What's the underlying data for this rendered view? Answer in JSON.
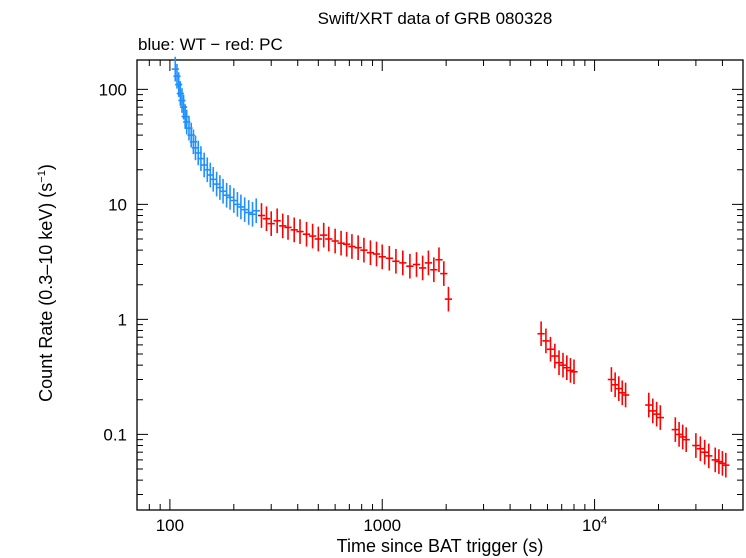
{
  "chart_data": {
    "type": "scatter",
    "title": "Swift/XRT data of GRB 080328",
    "subtitle": "blue: WT − red: PC",
    "xlabel": "Time since BAT trigger (s)",
    "ylabel": "Count Rate (0.3–10 keV) (s",
    "ylabel_sup": "−1",
    "ylabel_tail": ")",
    "xscale": "log",
    "yscale": "log",
    "xlim": [
      70,
      50000
    ],
    "ylim": [
      0.022,
      180
    ],
    "x_ticks": [
      {
        "value": 100,
        "label": "100"
      },
      {
        "value": 1000,
        "label": "1000"
      },
      {
        "value": 10000,
        "label": "10",
        "sup": "4"
      }
    ],
    "y_ticks": [
      {
        "value": 100,
        "label": "100"
      },
      {
        "value": 10,
        "label": "10"
      },
      {
        "value": 1,
        "label": "1"
      },
      {
        "value": 0.1,
        "label": "0.1"
      }
    ],
    "series": [
      {
        "name": "WT",
        "color": "#1E90FF",
        "points": [
          [
            106,
            150
          ],
          [
            108,
            130
          ],
          [
            110,
            110
          ],
          [
            112,
            92
          ],
          [
            114,
            80
          ],
          [
            116,
            70
          ],
          [
            118,
            58
          ],
          [
            120,
            52
          ],
          [
            123,
            46
          ],
          [
            126,
            40
          ],
          [
            129,
            35
          ],
          [
            132,
            31
          ],
          [
            136,
            28
          ],
          [
            140,
            25
          ],
          [
            145,
            22
          ],
          [
            150,
            20
          ],
          [
            155,
            18
          ],
          [
            160,
            16.5
          ],
          [
            166,
            15
          ],
          [
            172,
            14
          ],
          [
            178,
            13
          ],
          [
            185,
            12
          ],
          [
            192,
            11.5
          ],
          [
            200,
            10.8
          ],
          [
            208,
            10
          ],
          [
            216,
            9.5
          ],
          [
            225,
            9
          ],
          [
            235,
            8.5
          ],
          [
            245,
            8.2
          ],
          [
            255,
            8.8
          ]
        ]
      },
      {
        "name": "PC",
        "color": "#FF0000",
        "points": [
          [
            270,
            8
          ],
          [
            285,
            7.5
          ],
          [
            300,
            6.8
          ],
          [
            320,
            7.2
          ],
          [
            340,
            6.5
          ],
          [
            360,
            6.3
          ],
          [
            385,
            6
          ],
          [
            410,
            5.8
          ],
          [
            440,
            5.5
          ],
          [
            470,
            5.3
          ],
          [
            500,
            5
          ],
          [
            530,
            5.4
          ],
          [
            560,
            5
          ],
          [
            600,
            4.8
          ],
          [
            640,
            4.6
          ],
          [
            680,
            4.5
          ],
          [
            720,
            4.3
          ],
          [
            770,
            4.2
          ],
          [
            820,
            4
          ],
          [
            880,
            3.8
          ],
          [
            940,
            3.7
          ],
          [
            1000,
            3.5
          ],
          [
            1080,
            3.4
          ],
          [
            1160,
            3.2
          ],
          [
            1250,
            3.1
          ],
          [
            1350,
            2.9
          ],
          [
            1450,
            3
          ],
          [
            1550,
            2.8
          ],
          [
            1650,
            3.1
          ],
          [
            1750,
            2.7
          ],
          [
            1850,
            3.3
          ],
          [
            1950,
            2.5
          ],
          [
            2050,
            1.5
          ],
          [
            5600,
            0.75
          ],
          [
            5900,
            0.65
          ],
          [
            6200,
            0.55
          ],
          [
            6500,
            0.48
          ],
          [
            6800,
            0.42
          ],
          [
            7100,
            0.4
          ],
          [
            7400,
            0.38
          ],
          [
            7700,
            0.36
          ],
          [
            8000,
            0.35
          ],
          [
            12000,
            0.3
          ],
          [
            12500,
            0.27
          ],
          [
            13000,
            0.25
          ],
          [
            13500,
            0.23
          ],
          [
            14000,
            0.22
          ],
          [
            18000,
            0.18
          ],
          [
            18800,
            0.16
          ],
          [
            19600,
            0.15
          ],
          [
            20400,
            0.14
          ],
          [
            24000,
            0.11
          ],
          [
            25000,
            0.1
          ],
          [
            26000,
            0.095
          ],
          [
            27000,
            0.09
          ],
          [
            30000,
            0.08
          ],
          [
            31500,
            0.075
          ],
          [
            33000,
            0.07
          ],
          [
            34500,
            0.065
          ],
          [
            37000,
            0.06
          ],
          [
            38500,
            0.058
          ],
          [
            40000,
            0.056
          ],
          [
            41500,
            0.054
          ]
        ]
      }
    ]
  }
}
